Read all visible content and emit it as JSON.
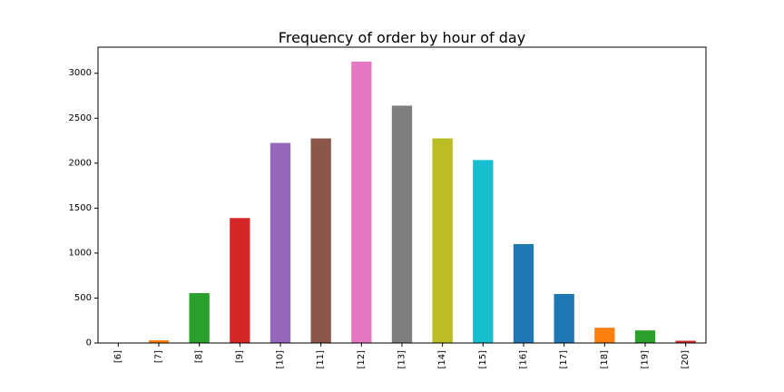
{
  "chart_data": {
    "type": "bar",
    "title": "Frequency of order by hour of day",
    "xlabel": "",
    "ylabel": "",
    "categories": [
      "[6]",
      "[7]",
      "[8]",
      "[9]",
      "[10]",
      "[11]",
      "[12]",
      "[13]",
      "[14]",
      "[15]",
      "[16]",
      "[17]",
      "[18]",
      "[19]",
      "[20]"
    ],
    "values": [
      5,
      30,
      555,
      1390,
      2225,
      2275,
      3130,
      2640,
      2275,
      2035,
      1100,
      545,
      170,
      140,
      25
    ],
    "colors": [
      "#1f77b4",
      "#ff7f0e",
      "#2ca02c",
      "#d62728",
      "#9467bd",
      "#8c564b",
      "#e377c2",
      "#7f7f7f",
      "#bcbd22",
      "#17becf",
      "#1f77b4",
      "#1f77b4",
      "#ff7f0e",
      "#2ca02c",
      "#d62728"
    ],
    "ylim": [
      0,
      3290
    ],
    "yticks": [
      0,
      500,
      1000,
      1500,
      2000,
      2500,
      3000
    ],
    "grid": false,
    "legend": "none"
  }
}
